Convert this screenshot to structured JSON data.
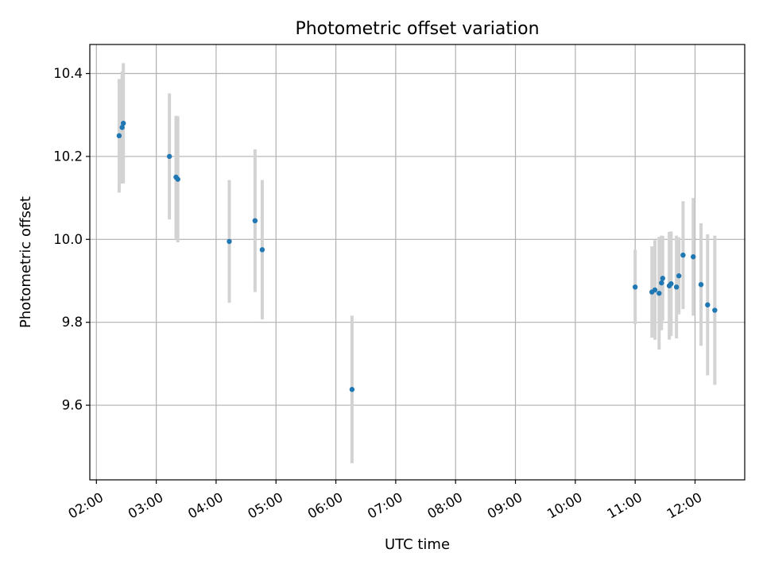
{
  "chart_data": {
    "type": "scatter",
    "title": "Photometric offset variation",
    "xlabel": "UTC time",
    "ylabel": "Photometric offset",
    "x_unit": "hours UTC",
    "xlim": [
      1.89,
      12.83
    ],
    "ylim": [
      9.42,
      10.47
    ],
    "x_ticks": [
      {
        "value": 2,
        "label": "02:00"
      },
      {
        "value": 3,
        "label": "03:00"
      },
      {
        "value": 4,
        "label": "04:00"
      },
      {
        "value": 5,
        "label": "05:00"
      },
      {
        "value": 6,
        "label": "06:00"
      },
      {
        "value": 7,
        "label": "07:00"
      },
      {
        "value": 8,
        "label": "08:00"
      },
      {
        "value": 9,
        "label": "09:00"
      },
      {
        "value": 10,
        "label": "10:00"
      },
      {
        "value": 11,
        "label": "11:00"
      },
      {
        "value": 12,
        "label": "12:00"
      }
    ],
    "y_ticks": [
      {
        "value": 9.6,
        "label": "9.6"
      },
      {
        "value": 9.8,
        "label": "9.8"
      },
      {
        "value": 10.0,
        "label": "10.0"
      },
      {
        "value": 10.2,
        "label": "10.2"
      },
      {
        "value": 10.4,
        "label": "10.4"
      }
    ],
    "grid": true,
    "point_color": "#1f77b4",
    "errorbar_color": "#d3d3d3",
    "points": [
      {
        "x": 2.38,
        "y": 10.25,
        "err": 0.137
      },
      {
        "x": 2.43,
        "y": 10.27,
        "err": 0.135
      },
      {
        "x": 2.45,
        "y": 10.28,
        "err": 0.145
      },
      {
        "x": 3.22,
        "y": 10.2,
        "err": 0.152
      },
      {
        "x": 3.33,
        "y": 10.15,
        "err": 0.148
      },
      {
        "x": 3.36,
        "y": 10.145,
        "err": 0.152
      },
      {
        "x": 4.22,
        "y": 9.995,
        "err": 0.148
      },
      {
        "x": 4.65,
        "y": 10.045,
        "err": 0.172
      },
      {
        "x": 4.77,
        "y": 9.975,
        "err": 0.168
      },
      {
        "x": 6.27,
        "y": 9.638,
        "err": 0.178
      },
      {
        "x": 11.0,
        "y": 9.885,
        "err": 0.09
      },
      {
        "x": 11.28,
        "y": 9.873,
        "err": 0.11
      },
      {
        "x": 11.33,
        "y": 9.878,
        "err": 0.12
      },
      {
        "x": 11.4,
        "y": 9.87,
        "err": 0.136
      },
      {
        "x": 11.44,
        "y": 9.895,
        "err": 0.114
      },
      {
        "x": 11.46,
        "y": 9.906,
        "err": 0.102
      },
      {
        "x": 11.57,
        "y": 9.888,
        "err": 0.13
      },
      {
        "x": 11.6,
        "y": 9.893,
        "err": 0.126
      },
      {
        "x": 11.69,
        "y": 9.885,
        "err": 0.124
      },
      {
        "x": 11.73,
        "y": 9.912,
        "err": 0.093
      },
      {
        "x": 11.8,
        "y": 9.962,
        "err": 0.13
      },
      {
        "x": 11.97,
        "y": 9.958,
        "err": 0.142
      },
      {
        "x": 12.1,
        "y": 9.891,
        "err": 0.148
      },
      {
        "x": 12.21,
        "y": 9.842,
        "err": 0.17
      },
      {
        "x": 12.33,
        "y": 9.829,
        "err": 0.18
      }
    ]
  }
}
